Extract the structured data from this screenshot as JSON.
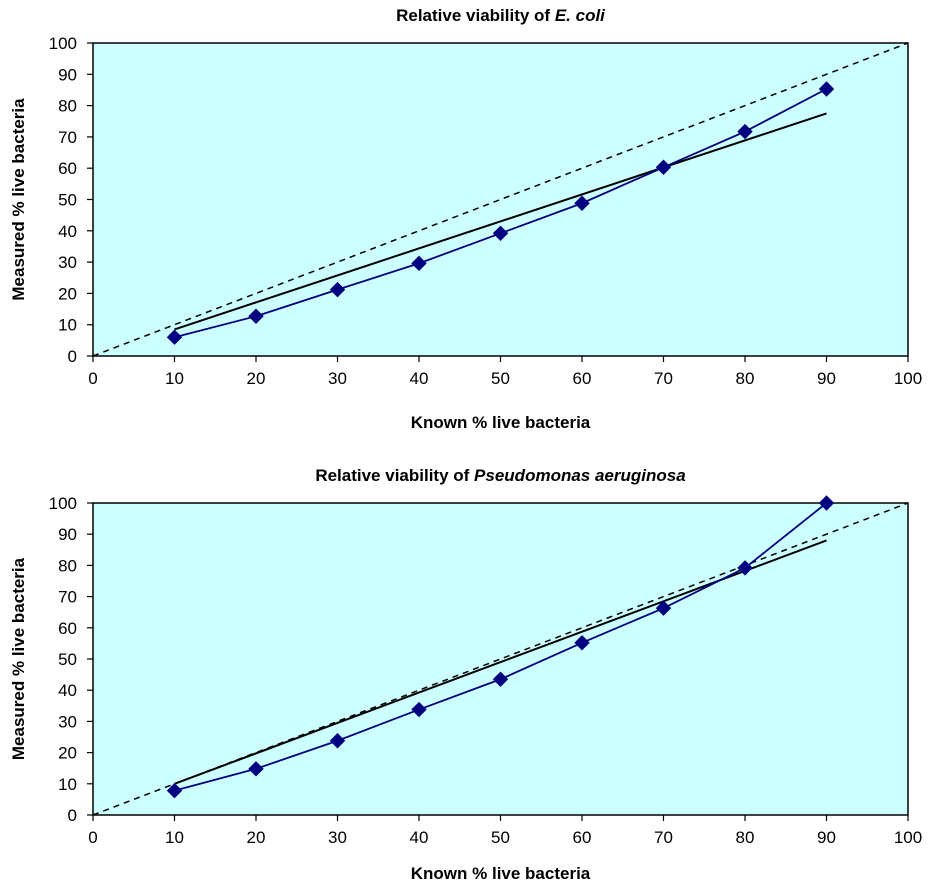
{
  "chart_data": [
    {
      "type": "line",
      "title_prefix": "Relative viability of ",
      "title_italic": "E. coli",
      "xlabel": "Known % live bacteria",
      "ylabel": "Measured % live bacteria",
      "xlim": [
        0,
        100
      ],
      "ylim": [
        0,
        100
      ],
      "xticks": [
        0,
        10,
        20,
        30,
        40,
        50,
        60,
        70,
        80,
        90,
        100
      ],
      "yticks": [
        0,
        10,
        20,
        30,
        40,
        50,
        60,
        70,
        80,
        90,
        100
      ],
      "grid": false,
      "plot_background": "#ccffff",
      "series": [
        {
          "x": [
            10,
            20,
            30,
            40,
            50,
            60,
            70,
            80,
            90
          ],
          "values": [
            6,
            12.7,
            21.2,
            29.6,
            39.2,
            48.8,
            60.3,
            71.7,
            85.3
          ],
          "color": "#000080",
          "marker": "diamond"
        }
      ],
      "trendline": {
        "x": [
          10,
          90
        ],
        "y": [
          8.5,
          77.5
        ],
        "color": "#000000"
      },
      "reference_line": {
        "x": [
          0,
          100
        ],
        "y": [
          0,
          100
        ],
        "style": "dashed",
        "color": "#000000"
      }
    },
    {
      "type": "line",
      "title_prefix": "Relative viability of ",
      "title_italic": "Pseudomonas aeruginosa",
      "xlabel": "Known % live bacteria",
      "ylabel": "Measured % live bacteria",
      "xlim": [
        0,
        100
      ],
      "ylim": [
        0,
        100
      ],
      "xticks": [
        0,
        10,
        20,
        30,
        40,
        50,
        60,
        70,
        80,
        90,
        100
      ],
      "yticks": [
        0,
        10,
        20,
        30,
        40,
        50,
        60,
        70,
        80,
        90,
        100
      ],
      "grid": false,
      "plot_background": "#ccffff",
      "series": [
        {
          "x": [
            10,
            20,
            30,
            40,
            50,
            60,
            70,
            80,
            90
          ],
          "values": [
            7.8,
            14.8,
            23.8,
            33.8,
            43.5,
            55.2,
            66.3,
            79.2,
            100
          ],
          "color": "#000080",
          "marker": "diamond"
        }
      ],
      "trendline": {
        "x": [
          10,
          90
        ],
        "y": [
          10,
          88
        ],
        "color": "#000000"
      },
      "reference_line": {
        "x": [
          0,
          100
        ],
        "y": [
          0,
          100
        ],
        "style": "dashed",
        "color": "#000000"
      }
    }
  ]
}
